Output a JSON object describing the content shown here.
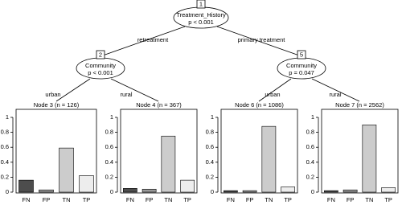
{
  "tree": {
    "nodes": [
      {
        "id": "1",
        "label": "Treatment_History",
        "p": "p < 0.001"
      },
      {
        "id": "2",
        "label": "Community",
        "p": "p < 0.001"
      },
      {
        "id": "5",
        "label": "Community",
        "p": "p = 0.047"
      }
    ],
    "edges": [
      "retreatment",
      "primary treatment",
      "urban",
      "rural",
      "urban",
      "rural"
    ]
  },
  "chart_data": [
    {
      "type": "bar",
      "title": "Node 3 (n = 126)",
      "categories": [
        "FN",
        "FP",
        "TN",
        "TP"
      ],
      "values": [
        0.16,
        0.03,
        0.59,
        0.22
      ],
      "colors": [
        "#4d4d4d",
        "#9a9a9a",
        "#cccccc",
        "#ededed"
      ],
      "ylim": [
        0,
        1
      ],
      "yticks": [
        0,
        0.2,
        0.4,
        0.6,
        0.8,
        1
      ]
    },
    {
      "type": "bar",
      "title": "Node 4 (n = 367)",
      "categories": [
        "FN",
        "FP",
        "TN",
        "TP"
      ],
      "values": [
        0.05,
        0.04,
        0.75,
        0.16
      ],
      "colors": [
        "#4d4d4d",
        "#9a9a9a",
        "#cccccc",
        "#ededed"
      ],
      "ylim": [
        0,
        1
      ],
      "yticks": [
        0,
        0.2,
        0.4,
        0.6,
        0.8,
        1
      ]
    },
    {
      "type": "bar",
      "title": "Node 6 (n = 1086)",
      "categories": [
        "FN",
        "FP",
        "TN",
        "TP"
      ],
      "values": [
        0.02,
        0.02,
        0.88,
        0.07
      ],
      "colors": [
        "#4d4d4d",
        "#9a9a9a",
        "#cccccc",
        "#ededed"
      ],
      "ylim": [
        0,
        1
      ],
      "yticks": [
        0,
        0.2,
        0.4,
        0.6,
        0.8,
        1
      ]
    },
    {
      "type": "bar",
      "title": "Node 7 (n = 2562)",
      "categories": [
        "FN",
        "FP",
        "TN",
        "TP"
      ],
      "values": [
        0.02,
        0.03,
        0.9,
        0.06
      ],
      "colors": [
        "#4d4d4d",
        "#9a9a9a",
        "#cccccc",
        "#ededed"
      ],
      "ylim": [
        0,
        1
      ],
      "yticks": [
        0,
        0.2,
        0.4,
        0.6,
        0.8,
        1
      ]
    }
  ]
}
